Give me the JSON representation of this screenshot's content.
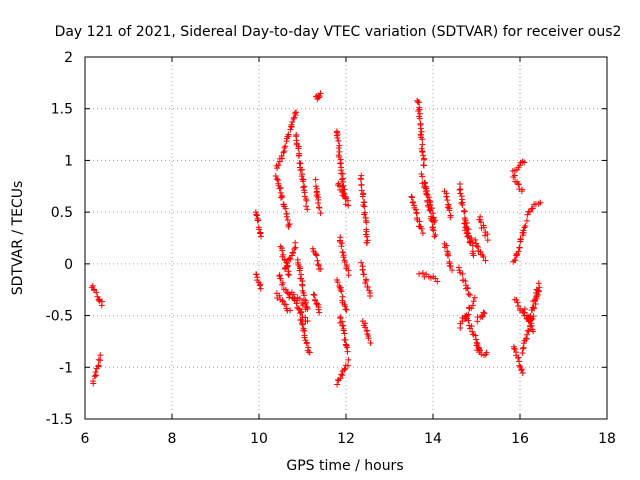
{
  "chart_data": {
    "type": "scatter",
    "title": "Day 121 of 2021, Sidereal Day-to-day VTEC variation (SDTVAR) for receiver ous2",
    "xlabel": "GPS time / hours",
    "ylabel": "SDTVAR / TECUs",
    "xlim": [
      6,
      18
    ],
    "ylim": [
      -1.5,
      2
    ],
    "xticks": [
      "6",
      "8",
      "10",
      "12",
      "14",
      "16",
      "18"
    ],
    "yticks": [
      "2",
      "1.5",
      "1",
      "0.5",
      "0",
      "-0.5",
      "-1",
      "-1.5"
    ],
    "grid": true,
    "marker": "+",
    "color": "#ff0000",
    "series": [
      {
        "name": "ous2",
        "segments": [
          [
            6.15,
            6.4,
            -0.22,
            -0.4
          ],
          [
            6.18,
            6.35,
            -1.15,
            -0.9
          ],
          [
            9.92,
            10.05,
            0.52,
            0.28
          ],
          [
            9.92,
            10.05,
            -0.1,
            -0.24
          ],
          [
            10.4,
            10.6,
            0.92,
            1.1
          ],
          [
            10.62,
            10.85,
            1.15,
            1.48
          ],
          [
            10.85,
            11.1,
            1.25,
            0.55
          ],
          [
            10.4,
            10.7,
            0.85,
            0.35
          ],
          [
            10.5,
            10.7,
            0.15,
            -0.1
          ],
          [
            10.6,
            10.85,
            -0.05,
            0.18
          ],
          [
            10.4,
            10.7,
            -0.3,
            -0.45
          ],
          [
            10.7,
            11.1,
            -0.3,
            -0.55
          ],
          [
            10.75,
            11.1,
            -0.3,
            -0.4
          ],
          [
            10.9,
            11.1,
            0.05,
            -0.45
          ],
          [
            10.95,
            11.15,
            -0.5,
            -0.88
          ],
          [
            10.45,
            10.65,
            -0.1,
            -0.28
          ],
          [
            11.25,
            11.4,
            0.15,
            -0.05
          ],
          [
            11.3,
            11.42,
            1.6,
            1.65
          ],
          [
            11.3,
            11.4,
            0.8,
            0.5
          ],
          [
            11.25,
            11.4,
            -0.28,
            -0.48
          ],
          [
            11.78,
            11.98,
            1.3,
            0.6
          ],
          [
            11.8,
            12.05,
            0.78,
            0.58
          ],
          [
            11.85,
            12.05,
            0.25,
            -0.1
          ],
          [
            11.8,
            12.0,
            -0.15,
            -0.45
          ],
          [
            11.85,
            12.05,
            -0.5,
            -0.85
          ],
          [
            11.8,
            12.05,
            -1.15,
            -0.95
          ],
          [
            12.35,
            12.5,
            0.85,
            0.2
          ],
          [
            12.35,
            12.55,
            0.0,
            -0.3
          ],
          [
            12.4,
            12.55,
            -0.55,
            -0.75
          ],
          [
            13.65,
            13.8,
            1.6,
            0.95
          ],
          [
            13.75,
            14.05,
            0.85,
            0.25
          ],
          [
            13.8,
            14.05,
            0.8,
            0.4
          ],
          [
            13.7,
            14.1,
            -0.1,
            -0.15
          ],
          [
            13.5,
            13.75,
            0.65,
            0.3
          ],
          [
            14.28,
            14.42,
            0.7,
            0.45
          ],
          [
            14.28,
            14.42,
            0.2,
            -0.05
          ],
          [
            14.6,
            14.85,
            0.75,
            0.2
          ],
          [
            14.7,
            14.95,
            0.4,
            0.1
          ],
          [
            14.6,
            14.85,
            -0.05,
            -0.3
          ],
          [
            14.62,
            14.95,
            -0.6,
            -0.35
          ],
          [
            14.75,
            15.1,
            -0.5,
            -0.85
          ],
          [
            15.0,
            15.25,
            -0.82,
            -0.88
          ],
          [
            14.9,
            15.2,
            0.25,
            0.05
          ],
          [
            15.05,
            15.25,
            0.45,
            0.25
          ],
          [
            15.0,
            15.2,
            -0.55,
            -0.48
          ],
          [
            15.85,
            16.1,
            0.9,
            1.0
          ],
          [
            15.85,
            16.05,
            0.85,
            0.7
          ],
          [
            15.85,
            16.05,
            -0.78,
            -1.05
          ],
          [
            15.88,
            16.1,
            -0.35,
            -0.5
          ],
          [
            15.85,
            16.15,
            0.0,
            0.4
          ],
          [
            16.1,
            16.3,
            -0.45,
            -0.65
          ],
          [
            16.05,
            16.3,
            -0.85,
            -0.5
          ],
          [
            16.15,
            16.45,
            0.5,
            0.6
          ],
          [
            16.2,
            16.45,
            -0.55,
            -0.25
          ],
          [
            16.3,
            16.45,
            -0.4,
            -0.2
          ]
        ]
      }
    ]
  }
}
